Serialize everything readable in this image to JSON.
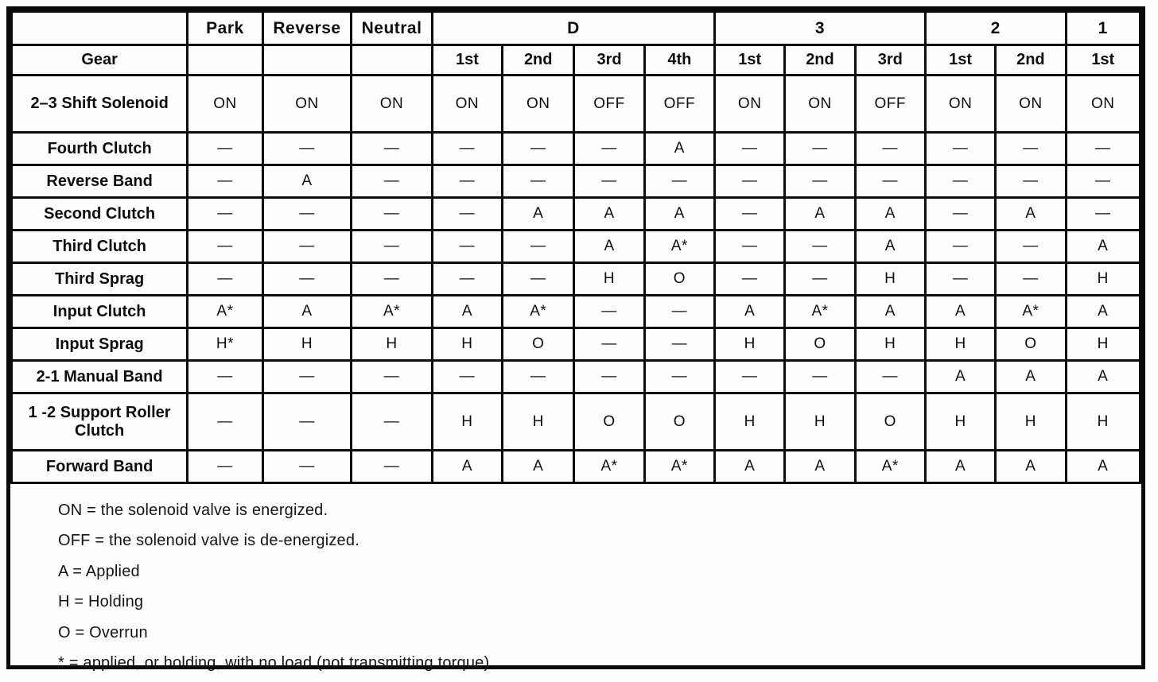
{
  "table": {
    "corner_label": "",
    "gear_label": "Gear",
    "range_headers": {
      "park": "Park",
      "reverse": "Reverse",
      "neutral": "Neutral",
      "d": "D",
      "three": "3",
      "two": "2",
      "one": "1"
    },
    "gear_subheaders": [
      "",
      "",
      "",
      "1st",
      "2nd",
      "3rd",
      "4th",
      "1st",
      "2nd",
      "3rd",
      "1st",
      "2nd",
      "1st"
    ],
    "rows": [
      {
        "label": "2–3 Shift Solenoid",
        "tall": true,
        "values": [
          "ON",
          "ON",
          "ON",
          "ON",
          "ON",
          "OFF",
          "OFF",
          "ON",
          "ON",
          "OFF",
          "ON",
          "ON",
          "ON"
        ]
      },
      {
        "label": "Fourth Clutch",
        "tall": false,
        "values": [
          "—",
          "—",
          "—",
          "—",
          "—",
          "—",
          "A",
          "—",
          "—",
          "—",
          "—",
          "—",
          "—"
        ]
      },
      {
        "label": "Reverse Band",
        "tall": false,
        "values": [
          "—",
          "A",
          "—",
          "—",
          "—",
          "—",
          "—",
          "—",
          "—",
          "—",
          "—",
          "—",
          "—"
        ]
      },
      {
        "label": "Second Clutch",
        "tall": false,
        "values": [
          "—",
          "—",
          "—",
          "—",
          "A",
          "A",
          "A",
          "—",
          "A",
          "A",
          "—",
          "A",
          "—"
        ]
      },
      {
        "label": "Third Clutch",
        "tall": false,
        "values": [
          "—",
          "—",
          "—",
          "—",
          "—",
          "A",
          "A*",
          "—",
          "—",
          "A",
          "—",
          "—",
          "A"
        ]
      },
      {
        "label": "Third Sprag",
        "tall": false,
        "values": [
          "—",
          "—",
          "—",
          "—",
          "—",
          "H",
          "O",
          "—",
          "—",
          "H",
          "—",
          "—",
          "H"
        ]
      },
      {
        "label": "Input Clutch",
        "tall": false,
        "values": [
          "A*",
          "A",
          "A*",
          "A",
          "A*",
          "—",
          "—",
          "A",
          "A*",
          "A",
          "A",
          "A*",
          "A"
        ]
      },
      {
        "label": "Input Sprag",
        "tall": false,
        "values": [
          "H*",
          "H",
          "H",
          "H",
          "O",
          "—",
          "—",
          "H",
          "O",
          "H",
          "H",
          "O",
          "H"
        ]
      },
      {
        "label": "2-1 Manual Band",
        "tall": false,
        "values": [
          "—",
          "—",
          "—",
          "—",
          "—",
          "—",
          "—",
          "—",
          "—",
          "—",
          "A",
          "A",
          "A"
        ]
      },
      {
        "label": "1 -2 Support Roller Clutch",
        "tall": true,
        "values": [
          "—",
          "—",
          "—",
          "H",
          "H",
          "O",
          "O",
          "H",
          "H",
          "O",
          "H",
          "H",
          "H"
        ]
      },
      {
        "label": "Forward Band",
        "tall": false,
        "values": [
          "—",
          "—",
          "—",
          "A",
          "A",
          "A*",
          "A*",
          "A",
          "A",
          "A*",
          "A",
          "A",
          "A"
        ]
      }
    ],
    "legend": [
      "ON = the solenoid valve is energized.",
      "OFF = the solenoid valve is de-energized.",
      "A = Applied",
      "H = Holding",
      "O = Overrun",
      "* = applied, or holding, with no load (not transmitting torque)."
    ]
  }
}
